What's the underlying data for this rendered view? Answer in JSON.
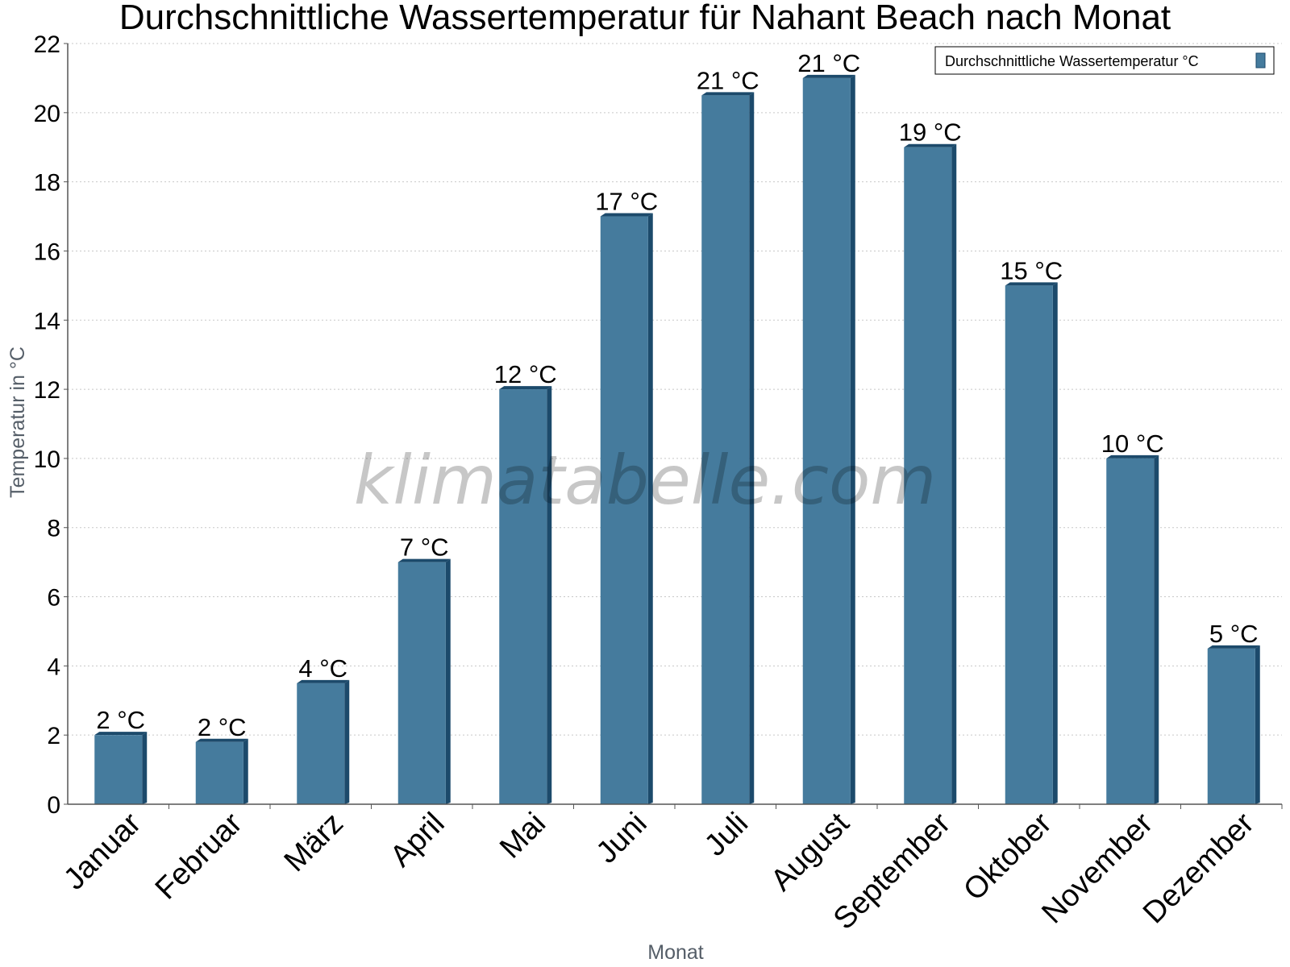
{
  "chart_data": {
    "type": "bar",
    "title": "Durchschnittliche Wassertemperatur für Nahant Beach nach Monat",
    "xlabel": "Monat",
    "ylabel": "Temperatur in °C",
    "categories": [
      "Januar",
      "Februar",
      "März",
      "April",
      "Mai",
      "Juni",
      "Juli",
      "August",
      "September",
      "Oktober",
      "November",
      "Dezember"
    ],
    "series": [
      {
        "name": "Durchschnittliche Wassertemperatur °C",
        "values": [
          2.0,
          1.8,
          3.5,
          7.0,
          12.0,
          17.0,
          20.5,
          21.0,
          19.0,
          15.0,
          10.0,
          4.5
        ],
        "labels": [
          "2 °C",
          "2 °C",
          "4 °C",
          "7 °C",
          "12 °C",
          "17 °C",
          "21 °C",
          "21 °C",
          "19 °C",
          "15 °C",
          "10 °C",
          "5 °C"
        ]
      }
    ],
    "ylim": [
      0,
      22
    ],
    "yticks": [
      "0",
      "2",
      "4",
      "6",
      "8",
      "10",
      "12",
      "14",
      "16",
      "18",
      "20",
      "22"
    ],
    "grid": true,
    "legend_position": "top-right",
    "colors": {
      "bar": "#457b9d",
      "bar_side": "#1c4a6b",
      "grid": "#c8c8c8",
      "axis": "#555555"
    }
  },
  "watermark": "klimatabelle.com"
}
